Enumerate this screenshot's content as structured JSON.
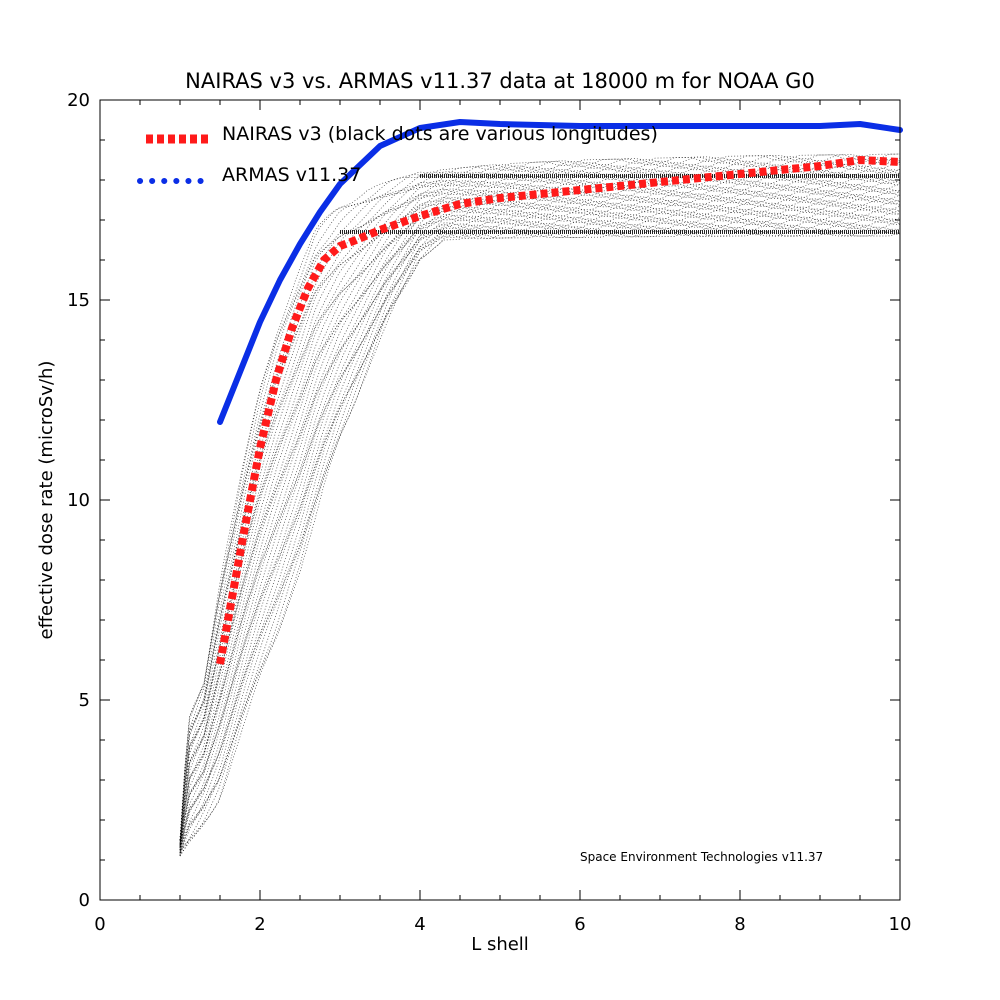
{
  "chart_data": {
    "type": "line",
    "title": "NAIRAS  v3 vs. ARMAS v11.37 data at 18000 m for NOAA G0",
    "xlabel": "L shell",
    "ylabel": "effective dose rate (microSv/h)",
    "xlim": [
      0,
      10
    ],
    "ylim": [
      0,
      20
    ],
    "x_ticks": [
      0,
      2,
      4,
      6,
      8,
      10
    ],
    "y_ticks": [
      0,
      5,
      10,
      15,
      20
    ],
    "x_tick_labels": [
      "0",
      "2",
      "4",
      "6",
      "8",
      "10"
    ],
    "y_tick_labels": [
      "0",
      "5",
      "10",
      "15",
      "20"
    ],
    "legend_placement": "top-left",
    "legend": [
      "NAIRAS v3 (black dots are various longitudes)",
      "ARMAS v11.37"
    ],
    "annotation": "Space Environment Technologies v11.37",
    "series": [
      {
        "name": "NAIRAS v3 (black dots are various longitudes)",
        "color": "#ff1a1a",
        "style": "dotted-thick",
        "x": [
          1.5,
          1.6,
          1.8,
          2.0,
          2.2,
          2.4,
          2.6,
          2.8,
          3.0,
          3.2,
          3.5,
          4.0,
          4.5,
          5.0,
          6.0,
          7.0,
          8.0,
          9.0,
          9.5,
          10.0
        ],
        "y": [
          5.9,
          7.0,
          9.2,
          11.3,
          13.0,
          14.3,
          15.3,
          16.0,
          16.35,
          16.5,
          16.75,
          17.1,
          17.4,
          17.55,
          17.75,
          17.95,
          18.15,
          18.35,
          18.5,
          18.45
        ]
      },
      {
        "name": "ARMAS v11.37",
        "color": "#0a2ee6",
        "style": "solid-thick",
        "x": [
          1.5,
          1.75,
          2.0,
          2.25,
          2.5,
          2.75,
          3.0,
          3.5,
          4.0,
          4.5,
          5.0,
          6.0,
          7.0,
          8.0,
          9.0,
          9.5,
          10.0
        ],
        "y": [
          11.95,
          13.2,
          14.45,
          15.5,
          16.4,
          17.2,
          17.9,
          18.85,
          19.3,
          19.45,
          19.4,
          19.35,
          19.35,
          19.35,
          19.35,
          19.4,
          19.25
        ]
      }
    ],
    "scatter_envelope": {
      "name": "NAIRAS v3 longitudes (black dots)",
      "color": "#000000",
      "upper": [
        [
          1.0,
          1.5
        ],
        [
          1.1,
          4.5
        ],
        [
          1.3,
          5.5
        ],
        [
          1.5,
          8.0
        ],
        [
          1.8,
          11.0
        ],
        [
          2.0,
          12.8
        ],
        [
          2.2,
          14.2
        ],
        [
          2.5,
          15.8
        ],
        [
          2.7,
          16.8
        ],
        [
          3.0,
          17.4
        ],
        [
          3.5,
          17.9
        ],
        [
          4.0,
          18.2
        ],
        [
          5.0,
          18.4
        ],
        [
          6.0,
          18.5
        ],
        [
          8.0,
          18.6
        ],
        [
          10.0,
          18.65
        ]
      ],
      "lower": [
        [
          1.0,
          1.1
        ],
        [
          1.2,
          1.6
        ],
        [
          1.5,
          2.5
        ],
        [
          1.8,
          4.4
        ],
        [
          2.0,
          5.5
        ],
        [
          2.2,
          6.5
        ],
        [
          2.5,
          8.2
        ],
        [
          2.8,
          10.3
        ],
        [
          3.0,
          11.5
        ],
        [
          3.3,
          13.0
        ],
        [
          3.6,
          14.5
        ],
        [
          4.0,
          16.0
        ],
        [
          4.3,
          16.5
        ],
        [
          5.0,
          16.55
        ],
        [
          8.0,
          16.6
        ],
        [
          10.0,
          16.6
        ]
      ],
      "bands": [
        {
          "y": 16.7,
          "x_from": 3.0,
          "x_to": 10.0
        },
        {
          "y": 18.1,
          "x_from": 4.0,
          "x_to": 10.0
        }
      ]
    }
  }
}
